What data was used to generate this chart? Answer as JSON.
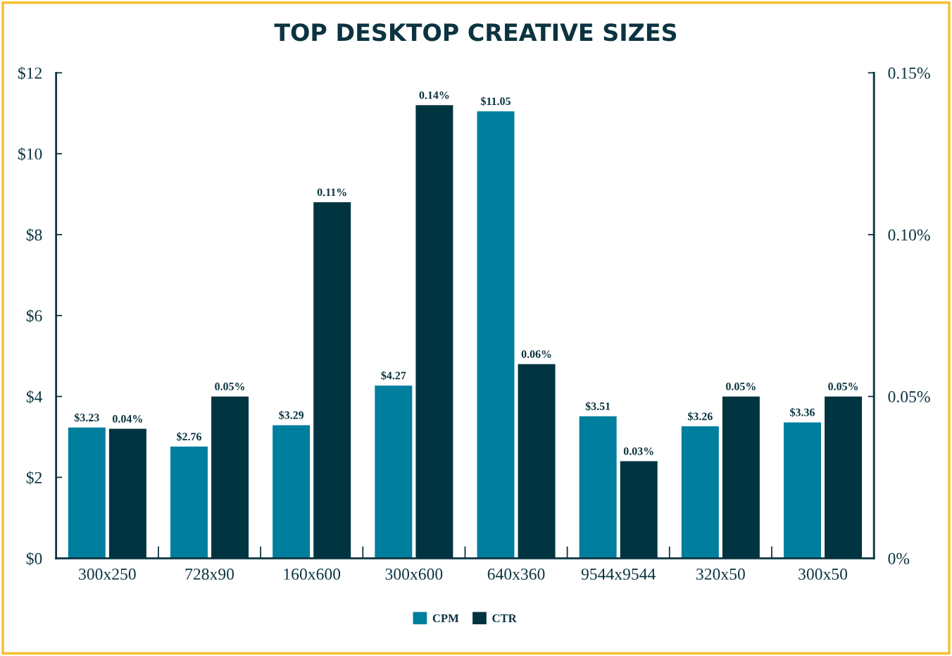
{
  "chart_data": {
    "type": "bar",
    "title": "TOP DESKTOP CREATIVE SIZES",
    "categories": [
      "300x250",
      "728x90",
      "160x600",
      "300x600",
      "640x360",
      "9544x9544",
      "320x50",
      "300x50"
    ],
    "series": [
      {
        "name": "CPM",
        "color": "#007e9e",
        "values": [
          3.23,
          2.76,
          3.29,
          4.27,
          11.05,
          3.51,
          3.26,
          3.36
        ],
        "value_labels": [
          "$3.23",
          "$2.76",
          "$3.29",
          "$4.27",
          "$11.05",
          "$3.51",
          "$3.26",
          "$3.36"
        ]
      },
      {
        "name": "CTR",
        "color": "#003441",
        "axis": "y2",
        "values": [
          0.04,
          0.05,
          0.11,
          0.14,
          0.06,
          0.03,
          0.05,
          0.05
        ],
        "value_labels": [
          "0.04%",
          "0.05%",
          "0.11%",
          "0.14%",
          "0.06%",
          "0.03%",
          "0.05%",
          "0.05%"
        ]
      }
    ],
    "ylim": [
      0,
      12
    ],
    "yticks": [
      {
        "value": 0,
        "label": "$0"
      },
      {
        "value": 2,
        "label": "$2"
      },
      {
        "value": 4,
        "label": "$4"
      },
      {
        "value": 6,
        "label": "$6"
      },
      {
        "value": 8,
        "label": "$8"
      },
      {
        "value": 10,
        "label": "$10"
      },
      {
        "value": 12,
        "label": "$12"
      }
    ],
    "y2lim": [
      0,
      0.15
    ],
    "y2ticks": [
      {
        "value": 0,
        "label": "0%"
      },
      {
        "value": 0.05,
        "label": "0.05%"
      },
      {
        "value": 0.1,
        "label": "0.10%"
      },
      {
        "value": 0.15,
        "label": "0.15%"
      }
    ],
    "grid": false,
    "legend": "bottom"
  }
}
